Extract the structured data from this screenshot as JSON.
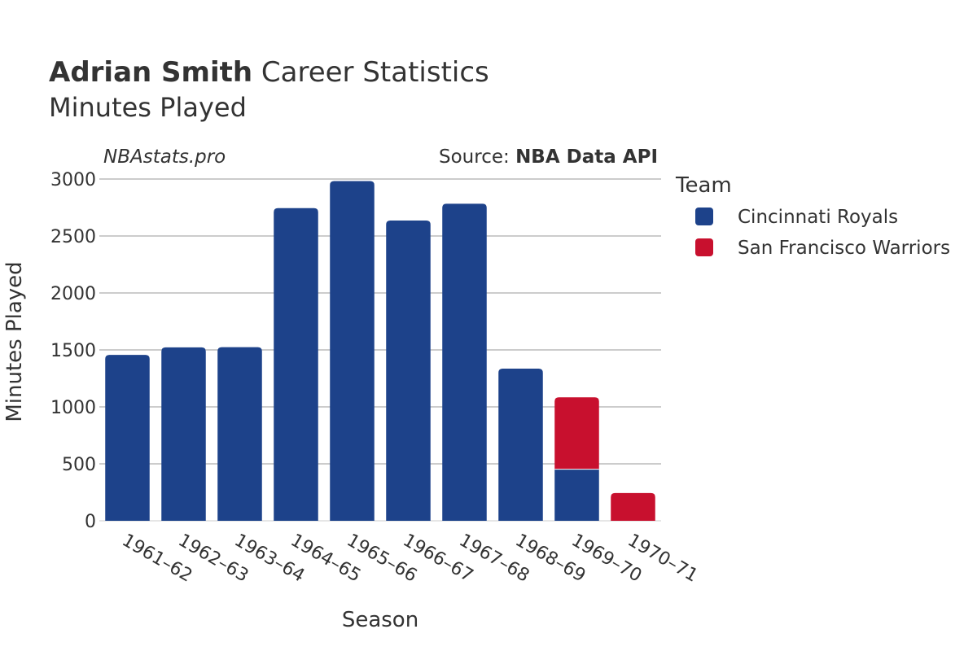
{
  "chart_data": {
    "type": "bar",
    "stacked": true,
    "title_bold": "Adrian Smith",
    "title_rest": "Career Statistics",
    "subtitle": "Minutes Played",
    "credit": "NBAstats.pro",
    "source_prefix": "Source: ",
    "source_name": "NBA Data API",
    "xlabel": "Season",
    "ylabel": "Minutes Played",
    "ylim": [
      0,
      3000
    ],
    "yticks": [
      0,
      500,
      1000,
      1500,
      2000,
      2500,
      3000
    ],
    "grid": true,
    "categories": [
      "1961–62",
      "1962–63",
      "1963–64",
      "1964–65",
      "1965–66",
      "1966–67",
      "1967–68",
      "1968–69",
      "1969–70",
      "1970–71"
    ],
    "legend_title": "Team",
    "legend_position": "right",
    "series": [
      {
        "name": "Cincinnati Royals",
        "color": "#1d428a",
        "values": [
          1456,
          1522,
          1524,
          2745,
          2982,
          2636,
          2783,
          1336,
          453,
          0
        ]
      },
      {
        "name": "San Francisco Warriors",
        "color": "#c8102e",
        "values": [
          0,
          0,
          0,
          0,
          0,
          0,
          0,
          0,
          631,
          244
        ]
      }
    ]
  }
}
